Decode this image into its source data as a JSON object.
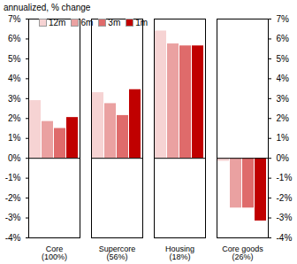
{
  "chart_data": {
    "type": "bar",
    "subtitle": "annualized, % change",
    "categories": [
      "Core\n(100%)",
      "Supercore\n(56%)",
      "Housing\n(18%)",
      "Core goods\n(26%)"
    ],
    "series": [
      {
        "name": "12m",
        "color": "#f6d3d3",
        "values": [
          2.9,
          3.3,
          6.4,
          -0.15
        ]
      },
      {
        "name": "6m",
        "color": "#eaa1a1",
        "values": [
          1.85,
          2.75,
          5.75,
          -2.5
        ]
      },
      {
        "name": "3m",
        "color": "#df6b6b",
        "values": [
          1.5,
          2.15,
          5.65,
          -2.5
        ]
      },
      {
        "name": "1m",
        "color": "#c00000",
        "values": [
          2.05,
          3.45,
          5.65,
          -3.15
        ]
      }
    ],
    "ylim": [
      -4,
      7
    ],
    "yticks": [
      {
        "value": -4,
        "label": "-4%"
      },
      {
        "value": -3,
        "label": "-3%"
      },
      {
        "value": -2,
        "label": "-2%"
      },
      {
        "value": -1,
        "label": "-1%"
      },
      {
        "value": 0,
        "label": "0%"
      },
      {
        "value": 1,
        "label": "1%"
      },
      {
        "value": 2,
        "label": "2%"
      },
      {
        "value": 3,
        "label": "3%"
      },
      {
        "value": 4,
        "label": "4%"
      },
      {
        "value": 5,
        "label": "5%"
      },
      {
        "value": 6,
        "label": "6%"
      },
      {
        "value": 7,
        "label": "7%"
      }
    ],
    "grid": false,
    "legend": "top-left"
  }
}
